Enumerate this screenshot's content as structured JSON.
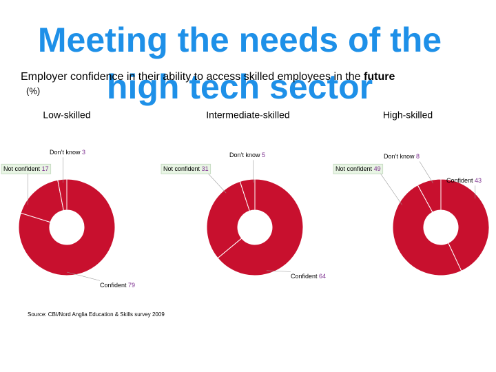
{
  "title": [
    "Meeting the needs of the",
    "high tech sector"
  ],
  "subtitle": [
    "Employer confidence in their ability to access skilled employees in the",
    "future"
  ],
  "unit": "(%)",
  "source": "Source: CBI/Nord Anglia Education & Skills survey 2009",
  "chart_data": [
    {
      "type": "pie",
      "donut": true,
      "title": "Low-skilled",
      "categories": [
        "Confident",
        "Not confident",
        "Don’t know"
      ],
      "values": [
        79,
        17,
        3
      ],
      "color": "#c8102e",
      "value_color": "#7b2d8e"
    },
    {
      "type": "pie",
      "donut": true,
      "title": "Intermediate-skilled",
      "categories": [
        "Confident",
        "Not confident",
        "Don’t know"
      ],
      "values": [
        64,
        31,
        5
      ],
      "color": "#c8102e",
      "value_color": "#7b2d8e"
    },
    {
      "type": "pie",
      "donut": true,
      "title": "High-skilled",
      "categories": [
        "Confident",
        "Not confident",
        "Don’t know"
      ],
      "values": [
        43,
        49,
        8
      ],
      "color": "#c8102e",
      "value_color": "#7b2d8e"
    }
  ]
}
